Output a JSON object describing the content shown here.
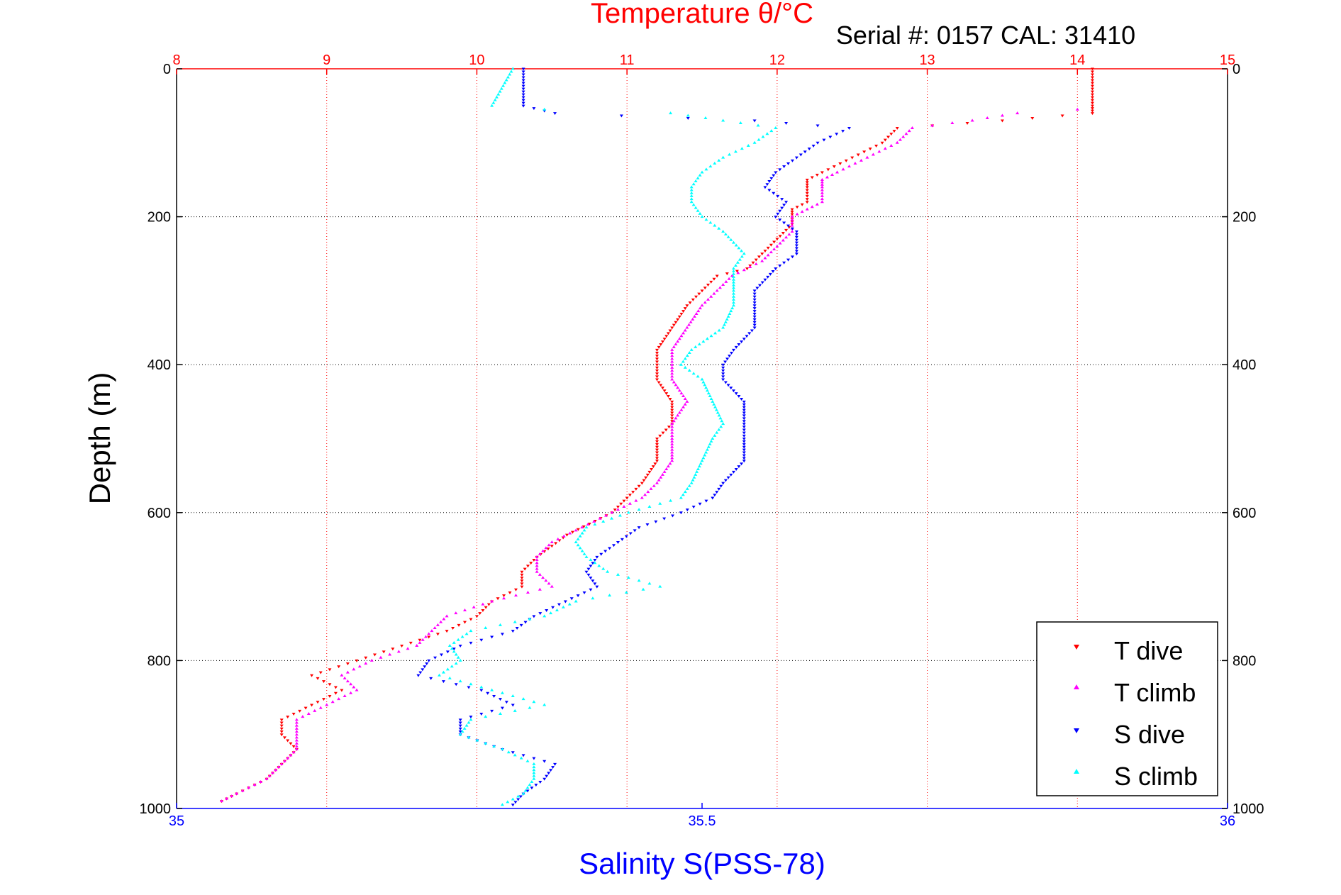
{
  "title": "Temperature θ/°C",
  "serial": "Serial #: 0157  CAL: 31410",
  "xlabel": "Salinity S(PSS-78)",
  "ylabel": "Depth (m)",
  "colors": {
    "t_axis": "#ff0000",
    "s_axis": "#0000ff",
    "t_dive": "#ff0000",
    "t_climb": "#ff00ff",
    "s_dive": "#0000ff",
    "s_climb": "#00ffff"
  },
  "chart_data": {
    "type": "scatter",
    "title": "Temperature θ/°C",
    "xlabel": "Salinity S(PSS-78)",
    "ylabel": "Depth (m)",
    "y_reversed": true,
    "grid": true,
    "legend_position": "bottom-right",
    "axes": {
      "depth": {
        "range": [
          0,
          1000
        ],
        "ticks": [
          "0",
          "200",
          "400",
          "600",
          "800",
          "1000"
        ]
      },
      "temperature_top": {
        "range": [
          8,
          15
        ],
        "ticks": [
          "8",
          "9",
          "10",
          "11",
          "12",
          "13",
          "14",
          "15"
        ]
      },
      "salinity_bottom": {
        "range": [
          35,
          36
        ],
        "ticks": [
          "35",
          "35.5",
          "36"
        ]
      }
    },
    "series": [
      {
        "name": "T dive",
        "axis": "temperature",
        "points": [
          [
            0,
            14.1
          ],
          [
            50,
            14.1
          ],
          [
            60,
            14.1
          ],
          [
            70,
            13.5
          ],
          [
            80,
            12.8
          ],
          [
            100,
            12.7
          ],
          [
            120,
            12.5
          ],
          [
            140,
            12.3
          ],
          [
            150,
            12.2
          ],
          [
            160,
            12.2
          ],
          [
            180,
            12.2
          ],
          [
            190,
            12.1
          ],
          [
            200,
            12.1
          ],
          [
            210,
            12.1
          ],
          [
            230,
            12.0
          ],
          [
            250,
            11.9
          ],
          [
            270,
            11.8
          ],
          [
            280,
            11.6
          ],
          [
            300,
            11.5
          ],
          [
            320,
            11.4
          ],
          [
            350,
            11.3
          ],
          [
            380,
            11.2
          ],
          [
            400,
            11.2
          ],
          [
            420,
            11.2
          ],
          [
            450,
            11.3
          ],
          [
            480,
            11.3
          ],
          [
            500,
            11.2
          ],
          [
            530,
            11.2
          ],
          [
            560,
            11.1
          ],
          [
            580,
            11.0
          ],
          [
            600,
            10.9
          ],
          [
            630,
            10.6
          ],
          [
            660,
            10.4
          ],
          [
            680,
            10.3
          ],
          [
            700,
            10.3
          ],
          [
            720,
            10.1
          ],
          [
            740,
            10.0
          ],
          [
            760,
            9.8
          ],
          [
            780,
            9.5
          ],
          [
            800,
            9.2
          ],
          [
            820,
            8.9
          ],
          [
            840,
            9.1
          ],
          [
            860,
            8.9
          ],
          [
            880,
            8.7
          ],
          [
            900,
            8.7
          ],
          [
            920,
            8.8
          ],
          [
            940,
            8.7
          ],
          [
            960,
            8.6
          ],
          [
            980,
            8.4
          ],
          [
            990,
            8.3
          ]
        ]
      },
      {
        "name": "T climb",
        "axis": "temperature",
        "points": [
          [
            55,
            14.0
          ],
          [
            60,
            13.6
          ],
          [
            70,
            13.3
          ],
          [
            80,
            12.9
          ],
          [
            100,
            12.8
          ],
          [
            120,
            12.6
          ],
          [
            140,
            12.4
          ],
          [
            150,
            12.3
          ],
          [
            160,
            12.3
          ],
          [
            180,
            12.3
          ],
          [
            190,
            12.2
          ],
          [
            200,
            12.1
          ],
          [
            220,
            12.1
          ],
          [
            240,
            12.0
          ],
          [
            260,
            11.9
          ],
          [
            280,
            11.7
          ],
          [
            300,
            11.6
          ],
          [
            320,
            11.5
          ],
          [
            350,
            11.4
          ],
          [
            380,
            11.3
          ],
          [
            400,
            11.3
          ],
          [
            420,
            11.3
          ],
          [
            450,
            11.4
          ],
          [
            480,
            11.3
          ],
          [
            500,
            11.3
          ],
          [
            530,
            11.3
          ],
          [
            560,
            11.2
          ],
          [
            580,
            11.1
          ],
          [
            600,
            10.9
          ],
          [
            620,
            10.7
          ],
          [
            640,
            10.5
          ],
          [
            660,
            10.4
          ],
          [
            680,
            10.4
          ],
          [
            700,
            10.5
          ],
          [
            720,
            10.1
          ],
          [
            740,
            9.8
          ],
          [
            760,
            9.7
          ],
          [
            780,
            9.6
          ],
          [
            800,
            9.3
          ],
          [
            820,
            9.1
          ],
          [
            840,
            9.2
          ],
          [
            860,
            9.0
          ],
          [
            880,
            8.8
          ],
          [
            900,
            8.8
          ],
          [
            920,
            8.8
          ],
          [
            940,
            8.7
          ],
          [
            960,
            8.6
          ],
          [
            980,
            8.4
          ],
          [
            990,
            8.3
          ]
        ]
      },
      {
        "name": "S dive",
        "axis": "salinity",
        "points": [
          [
            0,
            35.33
          ],
          [
            50,
            35.33
          ],
          [
            60,
            35.36
          ],
          [
            70,
            35.55
          ],
          [
            80,
            35.64
          ],
          [
            100,
            35.61
          ],
          [
            120,
            35.59
          ],
          [
            140,
            35.57
          ],
          [
            160,
            35.56
          ],
          [
            180,
            35.58
          ],
          [
            200,
            35.57
          ],
          [
            220,
            35.59
          ],
          [
            250,
            35.59
          ],
          [
            270,
            35.57
          ],
          [
            300,
            35.55
          ],
          [
            320,
            35.55
          ],
          [
            350,
            35.55
          ],
          [
            380,
            35.53
          ],
          [
            400,
            35.52
          ],
          [
            420,
            35.52
          ],
          [
            450,
            35.54
          ],
          [
            480,
            35.54
          ],
          [
            500,
            35.54
          ],
          [
            530,
            35.54
          ],
          [
            560,
            35.52
          ],
          [
            580,
            35.51
          ],
          [
            600,
            35.48
          ],
          [
            620,
            35.44
          ],
          [
            640,
            35.42
          ],
          [
            660,
            35.4
          ],
          [
            680,
            35.39
          ],
          [
            700,
            35.4
          ],
          [
            720,
            35.37
          ],
          [
            740,
            35.34
          ],
          [
            760,
            35.32
          ],
          [
            780,
            35.27
          ],
          [
            800,
            35.24
          ],
          [
            820,
            35.23
          ],
          [
            840,
            35.29
          ],
          [
            860,
            35.32
          ],
          [
            880,
            35.27
          ],
          [
            900,
            35.27
          ],
          [
            920,
            35.31
          ],
          [
            940,
            35.36
          ],
          [
            960,
            35.35
          ],
          [
            980,
            35.33
          ],
          [
            995,
            35.32
          ]
        ]
      },
      {
        "name": "S climb",
        "axis": "salinity",
        "points": [
          [
            0,
            35.32
          ],
          [
            50,
            35.3
          ],
          [
            55,
            35.35
          ],
          [
            60,
            35.47
          ],
          [
            70,
            35.52
          ],
          [
            80,
            35.57
          ],
          [
            100,
            35.55
          ],
          [
            120,
            35.52
          ],
          [
            140,
            35.5
          ],
          [
            160,
            35.49
          ],
          [
            180,
            35.49
          ],
          [
            200,
            35.5
          ],
          [
            220,
            35.52
          ],
          [
            250,
            35.54
          ],
          [
            270,
            35.53
          ],
          [
            300,
            35.53
          ],
          [
            320,
            35.53
          ],
          [
            350,
            35.52
          ],
          [
            380,
            35.49
          ],
          [
            400,
            35.48
          ],
          [
            420,
            35.5
          ],
          [
            450,
            35.51
          ],
          [
            480,
            35.52
          ],
          [
            500,
            35.51
          ],
          [
            530,
            35.5
          ],
          [
            560,
            35.49
          ],
          [
            580,
            35.48
          ],
          [
            600,
            35.43
          ],
          [
            620,
            35.39
          ],
          [
            640,
            35.38
          ],
          [
            660,
            35.39
          ],
          [
            680,
            35.41
          ],
          [
            700,
            35.46
          ],
          [
            720,
            35.38
          ],
          [
            740,
            35.35
          ],
          [
            760,
            35.28
          ],
          [
            780,
            35.26
          ],
          [
            800,
            35.27
          ],
          [
            820,
            35.25
          ],
          [
            840,
            35.3
          ],
          [
            860,
            35.35
          ],
          [
            880,
            35.28
          ],
          [
            900,
            35.27
          ],
          [
            920,
            35.31
          ],
          [
            940,
            35.34
          ],
          [
            960,
            35.34
          ],
          [
            980,
            35.33
          ],
          [
            995,
            35.31
          ]
        ]
      }
    ]
  }
}
